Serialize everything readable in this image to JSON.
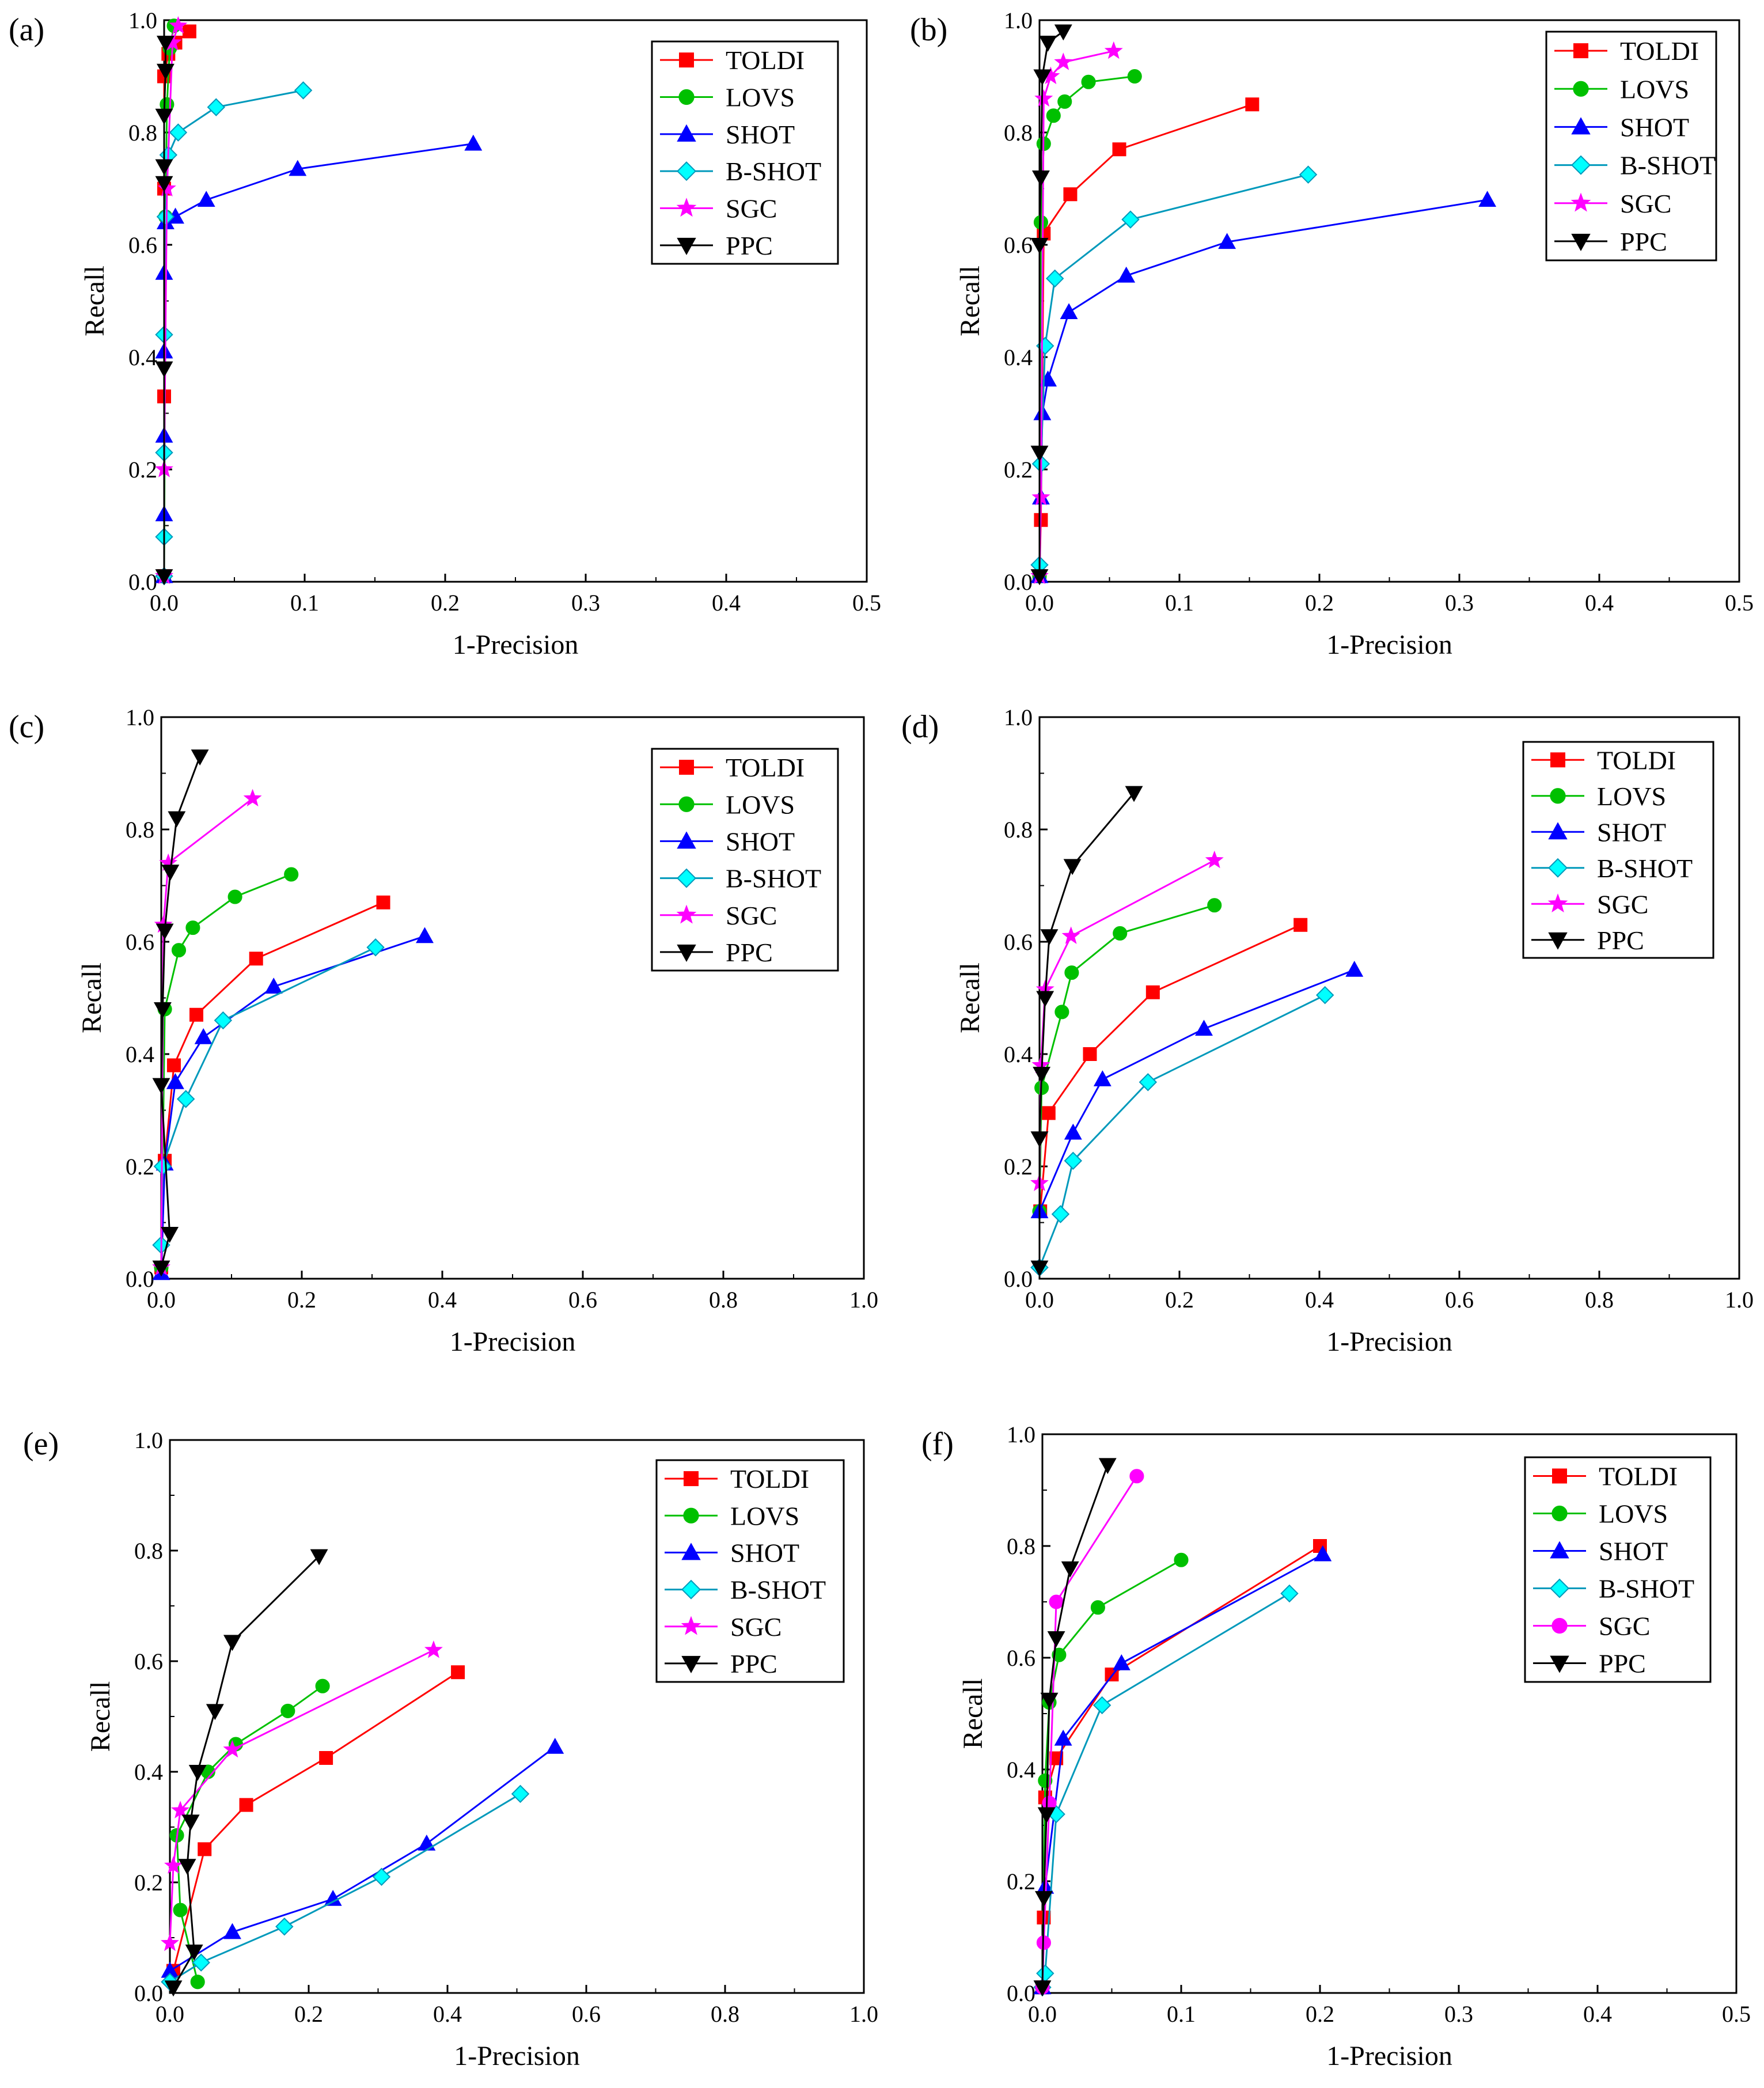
{
  "figure": {
    "description_labels": [
      "(a)",
      "(b)",
      "(c)",
      "(d)",
      "(e)",
      "(f)"
    ]
  },
  "styles": {
    "TOLDI": {
      "color": "#ff0000",
      "marker": "square"
    },
    "LOVS": {
      "color": "#00c000",
      "marker": "circle"
    },
    "SHOT": {
      "color": "#0000ff",
      "marker": "triangle-up"
    },
    "B-SHOT": {
      "color": "#00cccc",
      "fill": "#00ffff",
      "marker": "diamond"
    },
    "SGC": {
      "color": "#ff00ff",
      "marker": "star"
    },
    "SGC_f": {
      "color": "#ff00ff",
      "marker": "circle"
    },
    "PPC": {
      "color": "#000000",
      "marker": "triangle-down"
    }
  },
  "chart_data": [
    {
      "type": "line",
      "panel": "(a)",
      "xlabel": "1-Precision",
      "ylabel": "Recall",
      "xlim": [
        0,
        0.5
      ],
      "ylim": [
        0,
        1.0
      ],
      "xticks": [
        "0.0",
        "0.1",
        "0.2",
        "0.3",
        "0.4",
        "0.5"
      ],
      "yticks": [
        "0.0",
        "0.2",
        "0.4",
        "0.6",
        "0.8",
        "1.0"
      ],
      "legend": [
        "TOLDI",
        "LOVS",
        "SHOT",
        "B-SHOT",
        "SGC",
        "PPC"
      ],
      "series": [
        {
          "name": "TOLDI",
          "style": "TOLDI",
          "x": [
            0,
            0,
            0,
            0,
            0.003,
            0.008,
            0.018
          ],
          "y": [
            0.01,
            0.33,
            0.7,
            0.9,
            0.94,
            0.96,
            0.98
          ]
        },
        {
          "name": "LOVS",
          "style": "LOVS",
          "x": [
            0,
            0.001,
            0.002,
            0.004,
            0.007
          ],
          "y": [
            0.01,
            0.65,
            0.85,
            0.95,
            0.99
          ]
        },
        {
          "name": "SHOT",
          "style": "SHOT",
          "x": [
            0,
            0,
            0,
            0,
            0,
            0.001,
            0.008,
            0.03,
            0.095,
            0.22
          ],
          "y": [
            0.01,
            0.12,
            0.26,
            0.41,
            0.55,
            0.64,
            0.65,
            0.68,
            0.735,
            0.78
          ]
        },
        {
          "name": "B-SHOT",
          "style": "B-SHOT",
          "x": [
            0,
            0,
            0,
            0,
            0.001,
            0.003,
            0.01,
            0.037,
            0.099
          ],
          "y": [
            0.01,
            0.08,
            0.23,
            0.44,
            0.65,
            0.76,
            0.8,
            0.845,
            0.875
          ]
        },
        {
          "name": "SGC",
          "style": "SGC",
          "x": [
            0,
            0,
            0.002,
            0.006,
            0.01
          ],
          "y": [
            0.01,
            0.2,
            0.7,
            0.96,
            0.99
          ]
        },
        {
          "name": "PPC",
          "style": "PPC",
          "x": [
            0,
            0,
            0,
            0,
            0,
            0.001,
            0.001
          ],
          "y": [
            0.01,
            0.38,
            0.71,
            0.74,
            0.83,
            0.91,
            0.96
          ]
        }
      ]
    },
    {
      "type": "line",
      "panel": "(b)",
      "xlabel": "1-Precision",
      "ylabel": "Recall",
      "xlim": [
        0,
        0.5
      ],
      "ylim": [
        0,
        1.0
      ],
      "xticks": [
        "0.0",
        "0.1",
        "0.2",
        "0.3",
        "0.4",
        "0.5"
      ],
      "yticks": [
        "0.0",
        "0.2",
        "0.4",
        "0.6",
        "0.8",
        "1.0"
      ],
      "legend": [
        "TOLDI",
        "LOVS",
        "SHOT",
        "B-SHOT",
        "SGC",
        "PPC"
      ],
      "series": [
        {
          "name": "TOLDI",
          "style": "TOLDI",
          "x": [
            0,
            0.001,
            0.003,
            0.022,
            0.057,
            0.152
          ],
          "y": [
            0.01,
            0.11,
            0.62,
            0.69,
            0.77,
            0.85
          ]
        },
        {
          "name": "LOVS",
          "style": "LOVS",
          "x": [
            0,
            0.001,
            0.003,
            0.01,
            0.018,
            0.035,
            0.068
          ],
          "y": [
            0.01,
            0.64,
            0.78,
            0.83,
            0.855,
            0.89,
            0.9
          ]
        },
        {
          "name": "SHOT",
          "style": "SHOT",
          "x": [
            0,
            0.001,
            0.002,
            0.006,
            0.021,
            0.062,
            0.134,
            0.32
          ],
          "y": [
            0.01,
            0.15,
            0.3,
            0.36,
            0.48,
            0.545,
            0.605,
            0.68
          ]
        },
        {
          "name": "B-SHOT",
          "style": "B-SHOT",
          "x": [
            0,
            0.001,
            0.004,
            0.011,
            0.065,
            0.192
          ],
          "y": [
            0.03,
            0.21,
            0.42,
            0.54,
            0.645,
            0.725
          ]
        },
        {
          "name": "SGC",
          "style": "SGC",
          "x": [
            0,
            0.001,
            0.003,
            0.008,
            0.017,
            0.053
          ],
          "y": [
            0.01,
            0.15,
            0.86,
            0.9,
            0.925,
            0.945
          ]
        },
        {
          "name": "PPC",
          "style": "PPC",
          "x": [
            0,
            0,
            0,
            0.001,
            0.002,
            0.006,
            0.017
          ],
          "y": [
            0.01,
            0.23,
            0.6,
            0.72,
            0.9,
            0.96,
            0.98
          ]
        }
      ]
    },
    {
      "type": "line",
      "panel": "(c)",
      "xlabel": "1-Precision",
      "ylabel": "Recall",
      "xlim": [
        0,
        1.0
      ],
      "ylim": [
        0,
        1.0
      ],
      "xticks": [
        "0.0",
        "0.2",
        "0.4",
        "0.6",
        "0.8",
        "1.0"
      ],
      "yticks": [
        "0.0",
        "0.2",
        "0.4",
        "0.6",
        "0.8",
        "1.0"
      ],
      "legend": [
        "TOLDI",
        "LOVS",
        "SHOT",
        "B-SHOT",
        "SGC",
        "PPC"
      ],
      "series": [
        {
          "name": "TOLDI",
          "style": "TOLDI",
          "x": [
            0,
            0.005,
            0.018,
            0.05,
            0.135,
            0.316
          ],
          "y": [
            0.02,
            0.21,
            0.38,
            0.47,
            0.57,
            0.67
          ]
        },
        {
          "name": "LOVS",
          "style": "LOVS",
          "x": [
            0,
            0.005,
            0.025,
            0.045,
            0.105,
            0.185
          ],
          "y": [
            0.02,
            0.48,
            0.585,
            0.625,
            0.68,
            0.72
          ]
        },
        {
          "name": "SHOT",
          "style": "SHOT",
          "x": [
            0,
            0.005,
            0.02,
            0.06,
            0.16,
            0.375
          ],
          "y": [
            0.01,
            0.205,
            0.35,
            0.43,
            0.52,
            0.61
          ]
        },
        {
          "name": "B-SHOT",
          "style": "B-SHOT",
          "x": [
            0,
            0.002,
            0.035,
            0.088,
            0.305
          ],
          "y": [
            0.06,
            0.2,
            0.32,
            0.46,
            0.59
          ]
        },
        {
          "name": "SGC",
          "style": "SGC",
          "x": [
            0,
            0.003,
            0.01,
            0.13
          ],
          "y": [
            0.02,
            0.63,
            0.74,
            0.855
          ]
        },
        {
          "name": "PPC",
          "style": "PPC",
          "x": [
            0,
            0.012,
            0.0,
            0.002,
            0.005,
            0.013,
            0.022,
            0.055
          ],
          "y": [
            0.02,
            0.08,
            0.345,
            0.48,
            0.62,
            0.725,
            0.82,
            0.93
          ]
        }
      ]
    },
    {
      "type": "line",
      "panel": "(d)",
      "xlabel": "1-Precision",
      "ylabel": "Recall",
      "xlim": [
        0,
        1.0
      ],
      "ylim": [
        0,
        1.0
      ],
      "xticks": [
        "0.0",
        "0.2",
        "0.4",
        "0.6",
        "0.8",
        "1.0"
      ],
      "yticks": [
        "0.0",
        "0.2",
        "0.4",
        "0.6",
        "0.8",
        "1.0"
      ],
      "legend": [
        "TOLDI",
        "LOVS",
        "SHOT",
        "B-SHOT",
        "SGC",
        "PPC"
      ],
      "series": [
        {
          "name": "TOLDI",
          "style": "TOLDI",
          "x": [
            0.001,
            0.013,
            0.072,
            0.162,
            0.373
          ],
          "y": [
            0.12,
            0.295,
            0.4,
            0.51,
            0.63
          ]
        },
        {
          "name": "LOVS",
          "style": "LOVS",
          "x": [
            0,
            0.003,
            0.032,
            0.046,
            0.115,
            0.25
          ],
          "y": [
            0.12,
            0.34,
            0.475,
            0.545,
            0.615,
            0.665
          ]
        },
        {
          "name": "SHOT",
          "style": "SHOT",
          "x": [
            0,
            0.048,
            0.09,
            0.235,
            0.45
          ],
          "y": [
            0.12,
            0.26,
            0.355,
            0.445,
            0.55
          ]
        },
        {
          "name": "B-SHOT",
          "style": "B-SHOT",
          "x": [
            0,
            0.03,
            0.048,
            0.155,
            0.408
          ],
          "y": [
            0.02,
            0.115,
            0.21,
            0.35,
            0.505
          ]
        },
        {
          "name": "SGC",
          "style": "SGC",
          "x": [
            0,
            0.002,
            0.008,
            0.045,
            0.25
          ],
          "y": [
            0.17,
            0.38,
            0.515,
            0.61,
            0.745
          ]
        },
        {
          "name": "PPC",
          "style": "PPC",
          "x": [
            0,
            0,
            0.003,
            0.008,
            0.014,
            0.047,
            0.135
          ],
          "y": [
            0.02,
            0.25,
            0.365,
            0.5,
            0.61,
            0.735,
            0.865
          ]
        }
      ]
    },
    {
      "type": "line",
      "panel": "(e)",
      "xlabel": "1-Precision",
      "ylabel": "Recall",
      "xlim": [
        0,
        1.0
      ],
      "ylim": [
        0,
        1.0
      ],
      "xticks": [
        "0.0",
        "0.2",
        "0.4",
        "0.6",
        "0.8",
        "1.0"
      ],
      "yticks": [
        "0.0",
        "0.2",
        "0.4",
        "0.6",
        "0.8",
        "1.0"
      ],
      "legend": [
        "TOLDI",
        "LOVS",
        "SHOT",
        "B-SHOT",
        "SGC",
        "PPC"
      ],
      "series": [
        {
          "name": "TOLDI",
          "style": "TOLDI",
          "x": [
            0.005,
            0.05,
            0.11,
            0.225,
            0.415
          ],
          "y": [
            0.04,
            0.26,
            0.34,
            0.425,
            0.58
          ]
        },
        {
          "name": "LOVS",
          "style": "LOVS",
          "x": [
            0.04,
            0.015,
            0.01,
            0.055,
            0.095,
            0.17,
            0.22
          ],
          "y": [
            0.02,
            0.15,
            0.285,
            0.4,
            0.45,
            0.51,
            0.555
          ]
        },
        {
          "name": "SHOT",
          "style": "SHOT",
          "x": [
            0,
            0.09,
            0.235,
            0.37,
            0.555
          ],
          "y": [
            0.04,
            0.11,
            0.17,
            0.27,
            0.445
          ]
        },
        {
          "name": "B-SHOT",
          "style": "B-SHOT",
          "x": [
            0,
            0.045,
            0.165,
            0.305,
            0.505
          ],
          "y": [
            0.02,
            0.055,
            0.12,
            0.21,
            0.36
          ]
        },
        {
          "name": "SGC",
          "style": "SGC",
          "x": [
            0,
            0.005,
            0.015,
            0.09,
            0.38
          ],
          "y": [
            0.09,
            0.23,
            0.33,
            0.44,
            0.62
          ]
        },
        {
          "name": "PPC",
          "style": "PPC",
          "x": [
            0.005,
            0.035,
            0.025,
            0.03,
            0.04,
            0.065,
            0.09,
            0.215
          ],
          "y": [
            0.01,
            0.075,
            0.23,
            0.31,
            0.4,
            0.51,
            0.635,
            0.79
          ]
        }
      ]
    },
    {
      "type": "line",
      "panel": "(f)",
      "xlabel": "1-Precision",
      "ylabel": "Recall",
      "xlim": [
        0,
        0.5
      ],
      "ylim": [
        0,
        1.0
      ],
      "xticks": [
        "0.0",
        "0.1",
        "0.2",
        "0.3",
        "0.4",
        "0.5"
      ],
      "yticks": [
        "0.0",
        "0.2",
        "0.4",
        "0.6",
        "0.8",
        "1.0"
      ],
      "legend": [
        "TOLDI",
        "LOVS",
        "SHOT",
        "B-SHOT",
        "SGC",
        "PPC"
      ],
      "series": [
        {
          "name": "TOLDI",
          "style": "TOLDI",
          "x": [
            0,
            0.001,
            0.002,
            0.01,
            0.05,
            0.2
          ],
          "y": [
            0.01,
            0.135,
            0.35,
            0.42,
            0.57,
            0.8
          ]
        },
        {
          "name": "LOVS",
          "style": "LOVS",
          "x": [
            0,
            0.002,
            0.005,
            0.012,
            0.04,
            0.1
          ],
          "y": [
            0.01,
            0.38,
            0.52,
            0.605,
            0.69,
            0.775
          ]
        },
        {
          "name": "SHOT",
          "style": "SHOT",
          "x": [
            0,
            0.002,
            0.015,
            0.057,
            0.202
          ],
          "y": [
            0.01,
            0.19,
            0.455,
            0.59,
            0.785
          ]
        },
        {
          "name": "B-SHOT",
          "style": "B-SHOT",
          "x": [
            0,
            0.002,
            0.01,
            0.043,
            0.178
          ],
          "y": [
            0.01,
            0.035,
            0.32,
            0.515,
            0.715
          ]
        },
        {
          "name": "SGC",
          "style": "SGC_f",
          "x": [
            0,
            0.001,
            0.005,
            0.01,
            0.068
          ],
          "y": [
            0.01,
            0.09,
            0.34,
            0.7,
            0.925
          ]
        },
        {
          "name": "PPC",
          "style": "PPC",
          "x": [
            0,
            0.001,
            0.003,
            0.005,
            0.01,
            0.02,
            0.047
          ],
          "y": [
            0.01,
            0.17,
            0.32,
            0.525,
            0.635,
            0.76,
            0.945
          ]
        }
      ]
    }
  ]
}
